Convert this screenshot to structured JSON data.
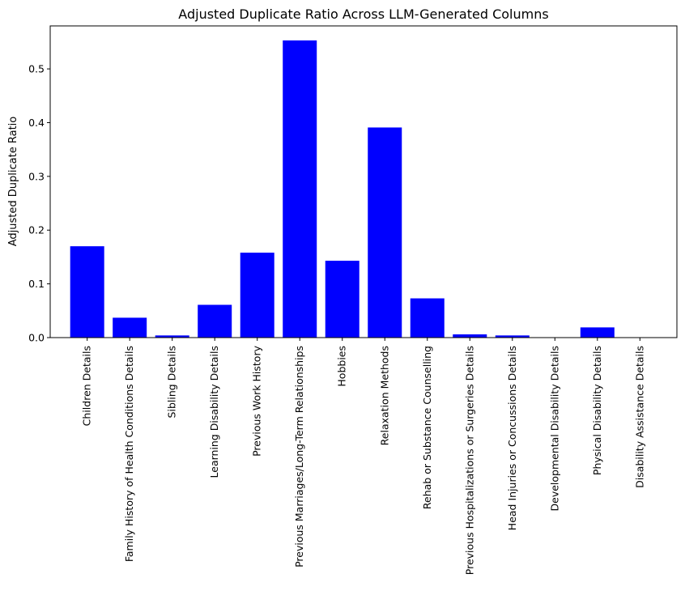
{
  "chart_data": {
    "type": "bar",
    "title": "Adjusted Duplicate Ratio Across LLM-Generated Columns",
    "xlabel": "",
    "ylabel": "Adjusted Duplicate Ratio",
    "categories": [
      "Children Details",
      "Family History of Health Conditions Details",
      "Sibling Details",
      "Learning Disability Details",
      "Previous Work History",
      "Previous Marriages/Long-Term Relationships",
      "Hobbies",
      "Relaxation Methods",
      "Rehab or Substance Counselling",
      "Previous Hospitalizations or Surgeries Details",
      "Head Injuries or Concussions Details",
      "Developmental Disability Details",
      "Physical Disability Details",
      "Disability Assistance Details"
    ],
    "values": [
      0.17,
      0.037,
      0.004,
      0.061,
      0.158,
      0.553,
      0.143,
      0.391,
      0.073,
      0.006,
      0.004,
      0.0,
      0.019,
      0.0
    ],
    "ylim": [
      0,
      0.58
    ],
    "yticks": [
      0.0,
      0.1,
      0.2,
      0.3,
      0.4,
      0.5
    ],
    "ytick_labels": [
      "0.0",
      "0.1",
      "0.2",
      "0.3",
      "0.4",
      "0.5"
    ],
    "bar_color": "#0000ff",
    "grid": false,
    "legend": "none"
  }
}
